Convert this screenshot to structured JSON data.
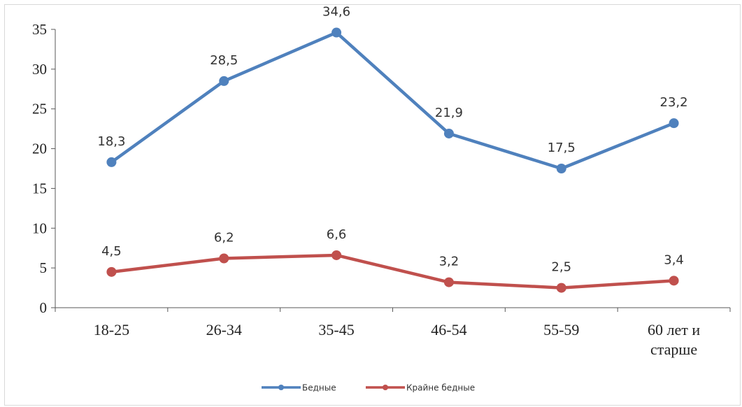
{
  "chart_data": {
    "type": "line",
    "categories": [
      "18-25",
      "26-34",
      "35-45",
      "46-54",
      "55-59",
      [
        "60 лет  и",
        "старше"
      ]
    ],
    "series": [
      {
        "name": "Бедные",
        "color": "#4f81bd",
        "values": [
          18.3,
          28.5,
          34.6,
          21.9,
          17.5,
          23.2
        ],
        "labels": [
          "18,3",
          "28,5",
          "34,6",
          "21,9",
          "17,5",
          "23,2"
        ]
      },
      {
        "name": "Крайне бедные",
        "color": "#c0504d",
        "values": [
          4.5,
          6.2,
          6.6,
          3.2,
          2.5,
          3.4
        ],
        "labels": [
          "4,5",
          "6,2",
          "6,6",
          "3,2",
          "2,5",
          "3,4"
        ]
      }
    ],
    "yticks": [
      "0",
      "5",
      "10",
      "15",
      "20",
      "25",
      "30",
      "35"
    ],
    "ylim": [
      0,
      35
    ],
    "grid": false,
    "legend": "bottom"
  }
}
